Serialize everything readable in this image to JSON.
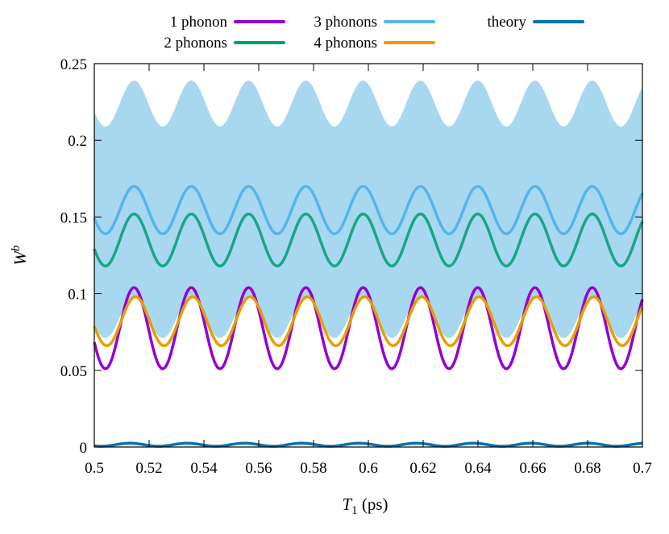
{
  "chart_data": {
    "type": "line",
    "xlabel_main": "T",
    "xlabel_sub": "1",
    "xlabel_unit": " (ps)",
    "ylabel_main": "W",
    "ylabel_sup": "b",
    "xlim": [
      0.5,
      0.7
    ],
    "ylim": [
      0,
      0.25
    ],
    "xticks": [
      0.5,
      0.52,
      0.54,
      0.56,
      0.58,
      0.6,
      0.62,
      0.64,
      0.66,
      0.68,
      0.7
    ],
    "xtick_labels": [
      "0.5",
      "0.52",
      "0.54",
      "0.56",
      "0.58",
      "0.6",
      "0.62",
      "0.64",
      "0.66",
      "0.68",
      "0.7"
    ],
    "yticks": [
      0,
      0.05,
      0.1,
      0.15,
      0.2,
      0.25
    ],
    "ytick_labels": [
      "0",
      "0.05",
      "0.1",
      "0.15",
      "0.2",
      "0.25"
    ],
    "grid": false,
    "legend_position": "top",
    "period_ps": 0.0209,
    "band": {
      "color": "#a8d8f0",
      "upper_min": 0.209,
      "upper_max": 0.239,
      "lower_min": 0.071,
      "lower_max": 0.098
    },
    "series": [
      {
        "name": "1 phonon",
        "color": "#9400d3",
        "min": 0.051,
        "max": 0.104,
        "peak_x": 0.5145
      },
      {
        "name": "2 phonons",
        "color": "#009e73",
        "min": 0.118,
        "max": 0.152,
        "peak_x": 0.5145
      },
      {
        "name": "3 phonons",
        "color": "#56b4e9",
        "min": 0.139,
        "max": 0.17,
        "peak_x": 0.5145
      },
      {
        "name": "4 phonons",
        "color": "#e69f00",
        "min": 0.066,
        "max": 0.098,
        "peak_x": 0.515
      },
      {
        "name": "theory",
        "color": "#0072b2",
        "min": 0.0005,
        "max": 0.0025,
        "peak_x": 0.513
      }
    ]
  }
}
